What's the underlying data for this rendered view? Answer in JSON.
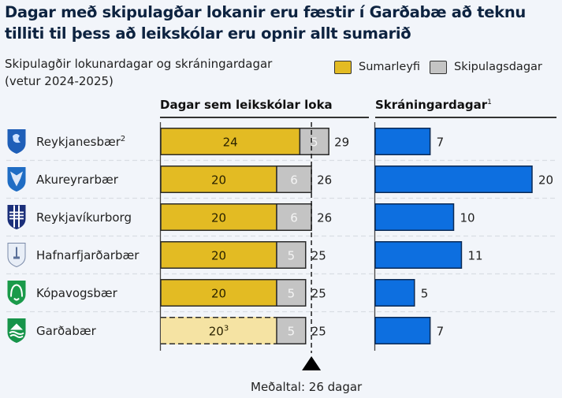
{
  "title": "Dagar með skipulagðar lokanir eru fæstir í Garðabæ að teknu tilliti til þess að leikskólar eru opnir allt sumarið",
  "subtitle_line1": "Skipulagðir lokunardagar og skráningardagar",
  "subtitle_line2": "(vetur 2024-2025)",
  "colors": {
    "sumarleyfi": "#e3bb23",
    "sumarleyfi_light": "#f5e3a3",
    "skipulagsdagar": "#c4c4c4",
    "skraningardagar": "#0d6fe0",
    "border": "#2b2b2b",
    "background": "#f2f5fa"
  },
  "chart_data": [
    {
      "type": "bar",
      "stacked": true,
      "orientation": "horizontal",
      "title": "Dagar sem leikskólar loka",
      "categories": [
        "Reykjanesbær",
        "Akureyrarbær",
        "Reykjavíkurborg",
        "Hafnarfjarðarbær",
        "Kópavogsbær",
        "Garðabær"
      ],
      "category_superscripts": [
        "2",
        "",
        "",
        "",
        "",
        ""
      ],
      "series": [
        {
          "name": "Sumarleyfi",
          "values": [
            24,
            20,
            20,
            20,
            20,
            20
          ],
          "value_superscripts": [
            "",
            "",
            "",
            "",
            "",
            "3"
          ]
        },
        {
          "name": "Skipulagsdagar",
          "values": [
            5,
            6,
            6,
            5,
            5,
            5
          ]
        }
      ],
      "totals": [
        29,
        26,
        26,
        25,
        25,
        25
      ],
      "hatched_dashed_category": "Garðabær",
      "legend": [
        "Sumarleyfi",
        "Skipulagsdagar"
      ],
      "legend_position": "top-right",
      "reference_line": {
        "value": 26,
        "label": "Meðaltal: 26 dagar",
        "style": "dashed"
      },
      "xlim": [
        0,
        30
      ]
    },
    {
      "type": "bar",
      "orientation": "horizontal",
      "title": "Skráningardagar",
      "title_superscript": "1",
      "categories": [
        "Reykjanesbær",
        "Akureyrarbær",
        "Reykjavíkurborg",
        "Hafnarfjarðarbær",
        "Kópavogsbær",
        "Garðabær"
      ],
      "values": [
        7,
        20,
        10,
        11,
        5,
        7
      ],
      "xlim": [
        0,
        22
      ]
    }
  ],
  "legend": {
    "items": [
      {
        "label": "Sumarleyfi",
        "color": "#e3bb23"
      },
      {
        "label": "Skipulagsdagar",
        "color": "#c4c4c4"
      }
    ]
  },
  "panels": {
    "left_title": "Dagar sem leikskólar loka",
    "right_title": "Skráningardagar",
    "right_title_sup": "1"
  },
  "mean_label": "Meðaltal: 26 dagar",
  "icons": [
    "reykjanesbaer-crest-icon",
    "akureyrarbaer-crest-icon",
    "reykjavikurborg-crest-icon",
    "hafnarfjardarbaer-crest-icon",
    "kopavogsbaer-crest-icon",
    "gardabaer-crest-icon"
  ],
  "crest_colors": [
    "#1f5fb8",
    "#1f6dc4",
    "#1b2f7a",
    "#e8eef7",
    "#1a9a4a",
    "#17944a"
  ]
}
